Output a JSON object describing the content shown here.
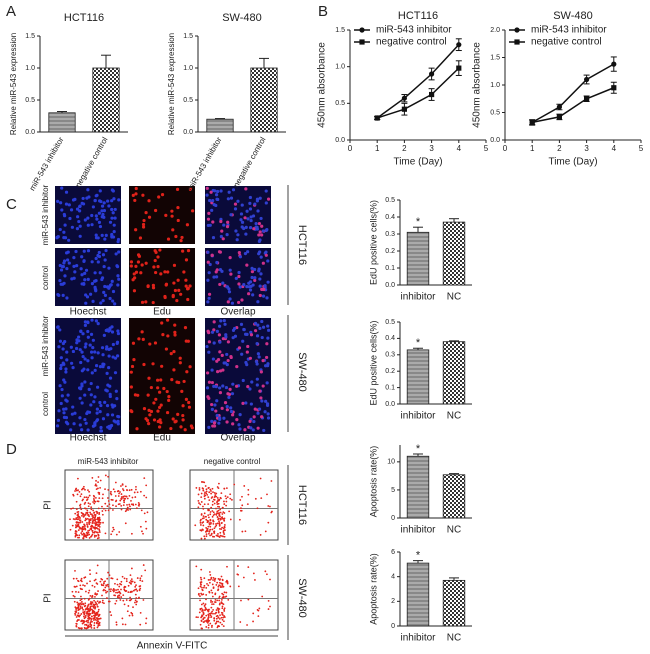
{
  "figure": {
    "panels": [
      "A",
      "B",
      "C",
      "D"
    ],
    "edu_images": {
      "row_labels": [
        "miR-543 inhibitor",
        "control"
      ],
      "column_labels": [
        "Hoechst",
        "Edu",
        "Overlap"
      ],
      "cell_lines": [
        "HCT116",
        "SW-480"
      ]
    },
    "flow": {
      "column_labels": [
        "miR-543 inhibitor",
        "negative control"
      ],
      "y_label": "PI",
      "x_label": "Annexin V-FITC",
      "cell_lines": [
        "HCT116",
        "SW-480"
      ]
    }
  },
  "chart_data": [
    {
      "type": "bar",
      "title": "HCT116",
      "ylabel": "Relative miR-543 expression",
      "categories": [
        "miR-543 inhibitor",
        "negative control"
      ],
      "values": [
        0.3,
        1.0
      ],
      "errors": [
        0.02,
        0.2
      ],
      "ylim": [
        0,
        1.5
      ],
      "yticks": [
        {
          "value": 0,
          "label": "0.0"
        },
        0.5,
        {
          "value": 1,
          "label": "1.0"
        },
        1.5
      ]
    },
    {
      "type": "bar",
      "title": "SW-480",
      "ylabel": "Relative miR-543 expression",
      "categories": [
        "miR-543 inhibitor",
        "negative control"
      ],
      "values": [
        0.2,
        1.0
      ],
      "errors": [
        0.01,
        0.15
      ],
      "ylim": [
        0,
        1.5
      ],
      "yticks": [
        {
          "value": 0,
          "label": "0.0"
        },
        0.5,
        {
          "value": 1,
          "label": "1.0"
        },
        1.5
      ]
    },
    {
      "type": "line",
      "title": "HCT116",
      "xlabel": "Time (Day)",
      "ylabel": "450nm absorbance",
      "x": [
        1,
        2,
        3,
        4
      ],
      "series": [
        {
          "name": "miR-543 inhibitor",
          "marker": "circle",
          "values": [
            0.3,
            0.57,
            0.9,
            1.3
          ],
          "errors": [
            0.02,
            0.05,
            0.08,
            0.08
          ]
        },
        {
          "name": "negative control",
          "marker": "square",
          "values": [
            0.3,
            0.42,
            0.62,
            0.98
          ],
          "errors": [
            0.02,
            0.08,
            0.08,
            0.1
          ]
        }
      ],
      "xlim": [
        0,
        5
      ],
      "xticks": [
        0,
        1,
        2,
        3,
        4,
        5
      ],
      "ylim": [
        0,
        1.5
      ],
      "yticks": [
        {
          "value": 0,
          "label": "0.0"
        },
        0.5,
        {
          "value": 1,
          "label": "1.0"
        },
        1.5
      ]
    },
    {
      "type": "line",
      "title": "SW-480",
      "xlabel": "Time (Day)",
      "ylabel": "450nm absorbance",
      "x": [
        1,
        2,
        3,
        4
      ],
      "series": [
        {
          "name": "miR-543 inhibitor",
          "marker": "circle",
          "values": [
            0.32,
            0.6,
            1.1,
            1.38
          ],
          "errors": [
            0.05,
            0.05,
            0.08,
            0.13
          ]
        },
        {
          "name": "negative control",
          "marker": "square",
          "values": [
            0.32,
            0.42,
            0.75,
            0.95
          ],
          "errors": [
            0.04,
            0.05,
            0.05,
            0.1
          ]
        }
      ],
      "xlim": [
        0,
        5
      ],
      "xticks": [
        0,
        1,
        2,
        3,
        4,
        5
      ],
      "ylim": [
        0,
        2
      ],
      "yticks": [
        {
          "value": 0,
          "label": "0.0"
        },
        0.5,
        {
          "value": 1,
          "label": "1.0"
        },
        1.5,
        {
          "value": 2,
          "label": "2.0"
        }
      ]
    },
    {
      "type": "bar",
      "ylabel": "EdU positive cells(%)",
      "categories": [
        "inhibitor",
        "NC"
      ],
      "values": [
        0.31,
        0.37
      ],
      "errors": [
        0.03,
        0.02
      ],
      "annotation": "*",
      "ylim": [
        0,
        0.5
      ],
      "yticks": [
        {
          "value": 0,
          "label": "0.0"
        },
        0.1,
        0.2,
        0.3,
        0.4,
        0.5
      ]
    },
    {
      "type": "bar",
      "ylabel": "EdU positive cells(%)",
      "categories": [
        "inhibitor",
        "NC"
      ],
      "values": [
        0.33,
        0.38
      ],
      "errors": [
        0.01,
        0.005
      ],
      "annotation": "*",
      "ylim": [
        0,
        0.5
      ],
      "yticks": [
        {
          "value": 0,
          "label": "0.0"
        },
        0.1,
        0.2,
        0.3,
        0.4,
        0.5
      ]
    },
    {
      "type": "bar",
      "ylabel": "Apoptosis rate(%)",
      "categories": [
        "inhibitor",
        "NC"
      ],
      "values": [
        11,
        7.7
      ],
      "errors": [
        0.4,
        0.2
      ],
      "annotation": "*",
      "ylim": [
        0,
        13
      ],
      "yticks": [
        0,
        5,
        10
      ]
    },
    {
      "type": "bar",
      "ylabel": "Apoptosis rate(%)",
      "categories": [
        "inhibitor",
        "NC"
      ],
      "values": [
        5.1,
        3.7
      ],
      "errors": [
        0.2,
        0.2
      ],
      "annotation": "*",
      "ylim": [
        0,
        6
      ],
      "yticks": [
        0,
        2,
        4,
        6
      ]
    }
  ]
}
